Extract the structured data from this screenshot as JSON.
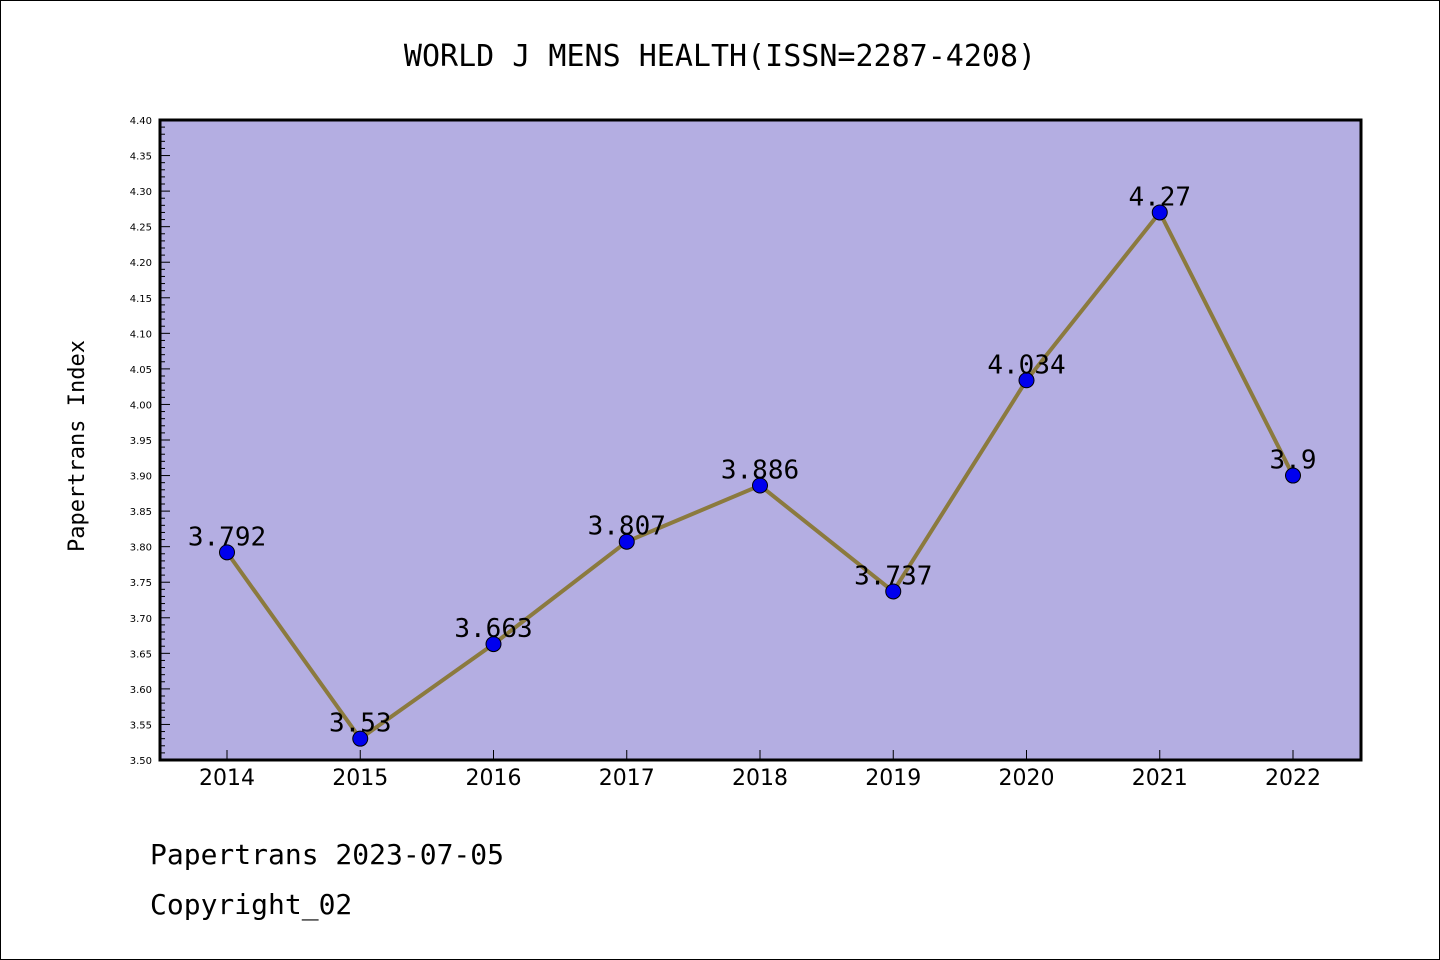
{
  "chart_data": {
    "type": "line",
    "title": "WORLD J MENS HEALTH(ISSN=2287-4208)",
    "xlabel": "",
    "ylabel": "Papertrans Index",
    "categories": [
      "2014",
      "2015",
      "2016",
      "2017",
      "2018",
      "2019",
      "2020",
      "2021",
      "2022"
    ],
    "series": [
      {
        "values": [
          3.792,
          3.53,
          3.663,
          3.807,
          3.886,
          3.737,
          4.034,
          4.27,
          3.9
        ],
        "data_labels": [
          "3.792",
          "3.53",
          "3.663",
          "3.807",
          "3.886",
          "3.737",
          "4.034",
          "4.27",
          "3.9"
        ]
      }
    ],
    "ylim": [
      3.5,
      4.4
    ],
    "yticks": [
      "3.50",
      "3.55",
      "3.60",
      "3.65",
      "3.70",
      "3.75",
      "3.80",
      "3.85",
      "3.90",
      "3.95",
      "4.00",
      "4.05",
      "4.10",
      "4.15",
      "4.20",
      "4.25",
      "4.30",
      "4.35",
      "4.40"
    ],
    "grid": false,
    "legend": "none",
    "colors": {
      "plot_background": "#b4aee2",
      "line": "#8b7a3e",
      "marker": "#0000ee"
    }
  },
  "footer": {
    "line1": "Papertrans 2023-07-05",
    "line2": "Copyright_02"
  }
}
